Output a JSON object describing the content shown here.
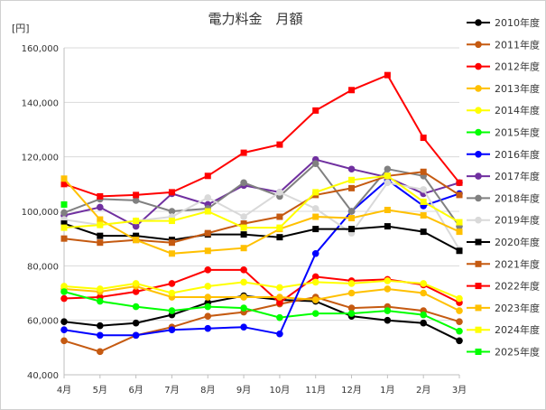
{
  "chart_data": {
    "type": "line",
    "title": "電力料金　月額",
    "ylabel": "[円]",
    "xlabel": "",
    "ylim": [
      40000,
      160000
    ],
    "yticks": [
      "40,000",
      "60,000",
      "80,000",
      "100,000",
      "120,000",
      "140,000",
      "160,000"
    ],
    "ytick_values": [
      40000,
      60000,
      80000,
      100000,
      120000,
      140000,
      160000
    ],
    "categories": [
      "4月",
      "5月",
      "6月",
      "7月",
      "8月",
      "9月",
      "10月",
      "11月",
      "12月",
      "1月",
      "2月",
      "3月"
    ],
    "grid": "horizontal",
    "legend_position": "right",
    "series": [
      {
        "name": "2010年度",
        "color": "#000000",
        "marker": "circle",
        "values": [
          59500,
          58000,
          59000,
          62000,
          66500,
          69000,
          67500,
          67000,
          61500,
          60000,
          59000,
          52500
        ]
      },
      {
        "name": "2011年度",
        "color": "#c55a11",
        "marker": "circle",
        "values": [
          52500,
          48500,
          54500,
          57500,
          61500,
          63000,
          66000,
          68500,
          64500,
          65000,
          63500,
          59500
        ]
      },
      {
        "name": "2012年度",
        "color": "#ff0000",
        "marker": "circle",
        "values": [
          68000,
          68500,
          70500,
          73500,
          78500,
          78500,
          66500,
          76000,
          74500,
          75000,
          73000,
          66500
        ]
      },
      {
        "name": "2013年度",
        "color": "#ffc000",
        "marker": "circle",
        "values": [
          71500,
          70500,
          72500,
          68500,
          68500,
          68500,
          68500,
          67500,
          70000,
          71500,
          70000,
          63500
        ]
      },
      {
        "name": "2014年度",
        "color": "#ffff00",
        "marker": "circle",
        "values": [
          72500,
          71500,
          73500,
          70000,
          72500,
          74000,
          72000,
          74000,
          73500,
          74500,
          73500,
          68000
        ]
      },
      {
        "name": "2015年度",
        "color": "#00ff00",
        "marker": "circle",
        "values": [
          70500,
          67000,
          65000,
          63500,
          65000,
          64500,
          61000,
          62500,
          62500,
          63500,
          62000,
          56000
        ]
      },
      {
        "name": "2016年度",
        "color": "#0000ff",
        "marker": "circle",
        "values": [
          56500,
          54500,
          54500,
          56500,
          57000,
          57500,
          55000,
          84500,
          100000,
          111500,
          102000,
          106500
        ]
      },
      {
        "name": "2017年度",
        "color": "#7030a0",
        "marker": "circle",
        "values": [
          98500,
          101500,
          94500,
          106500,
          102500,
          109500,
          107000,
          119000,
          115500,
          112500,
          106500,
          110500
        ]
      },
      {
        "name": "2018年度",
        "color": "#808080",
        "marker": "circle",
        "values": [
          99500,
          104500,
          104000,
          100000,
          101000,
          110500,
          105500,
          117500,
          100000,
          115500,
          113000,
          94500
        ]
      },
      {
        "name": "2019年度",
        "color": "#d9d9d9",
        "marker": "circle",
        "values": [
          97000,
          95000,
          96500,
          98000,
          105000,
          98000,
          107000,
          101000,
          92000,
          110500,
          108000,
          86000
        ]
      },
      {
        "name": "2020年度",
        "color": "#000000",
        "marker": "square",
        "values": [
          95500,
          91000,
          91000,
          89500,
          91500,
          91500,
          90500,
          93500,
          93500,
          94500,
          92500,
          85500
        ]
      },
      {
        "name": "2021年度",
        "color": "#c55a11",
        "marker": "square",
        "values": [
          90000,
          88500,
          89500,
          88500,
          92000,
          95500,
          98000,
          106000,
          108500,
          113000,
          114500,
          106000
        ]
      },
      {
        "name": "2022年度",
        "color": "#ff0000",
        "marker": "square",
        "values": [
          110000,
          105500,
          106000,
          107000,
          113000,
          121500,
          124500,
          137000,
          144500,
          150000,
          127000,
          110500
        ]
      },
      {
        "name": "2023年度",
        "color": "#ffc000",
        "marker": "square",
        "values": [
          112000,
          97000,
          89500,
          84500,
          85500,
          86500,
          93500,
          98000,
          97500,
          100500,
          98500,
          92500
        ]
      },
      {
        "name": "2024年度",
        "color": "#ffff00",
        "marker": "square",
        "values": [
          94000,
          95000,
          96500,
          96500,
          100000,
          94000,
          94000,
          107000,
          111500,
          113000,
          103500,
          96000
        ]
      },
      {
        "name": "2025年度",
        "color": "#00ff00",
        "marker": "square",
        "values": [
          102500,
          null,
          null,
          null,
          null,
          null,
          null,
          null,
          null,
          null,
          null,
          null
        ]
      }
    ]
  }
}
